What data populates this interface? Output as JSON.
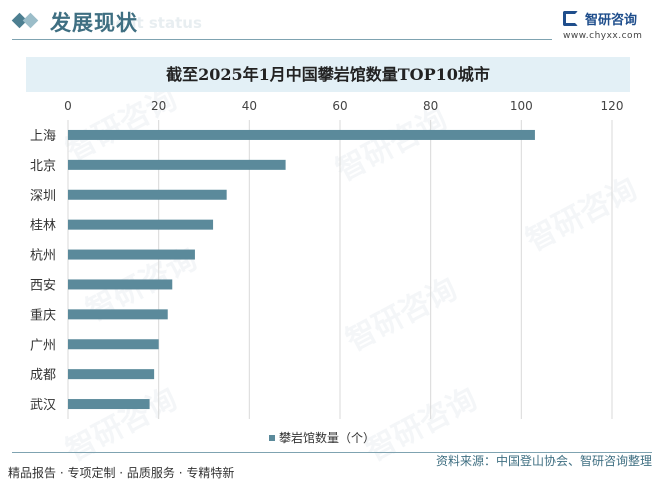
{
  "header": {
    "section_title": "发展现状",
    "section_subtitle": "ment status",
    "logo_text": "智研咨询",
    "logo_url": "www.chyxx.com"
  },
  "chart_data": {
    "type": "bar",
    "orientation": "horizontal",
    "title": "截至2025年1月中国攀岩馆数量TOP10城市",
    "categories": [
      "上海",
      "北京",
      "深圳",
      "桂林",
      "杭州",
      "西安",
      "重庆",
      "广州",
      "成都",
      "武汉"
    ],
    "series": [
      {
        "name": "攀岩馆数量（个）",
        "values": [
          103,
          48,
          35,
          32,
          28,
          23,
          22,
          20,
          19,
          18
        ]
      }
    ],
    "xlim": [
      0,
      120
    ],
    "xticks": [
      0,
      20,
      40,
      60,
      80,
      100,
      120
    ],
    "x_axis_position": "top",
    "grid": "vertical",
    "legend_position": "bottom",
    "colors": {
      "bar": "#5b8a9b",
      "grid": "#d9d9d9"
    }
  },
  "watermark": "智研咨询",
  "footer": {
    "left": "精品报告 · 专项定制 · 品质服务 · 专精特新",
    "source": "资料来源：中国登山协会、智研咨询整理"
  }
}
